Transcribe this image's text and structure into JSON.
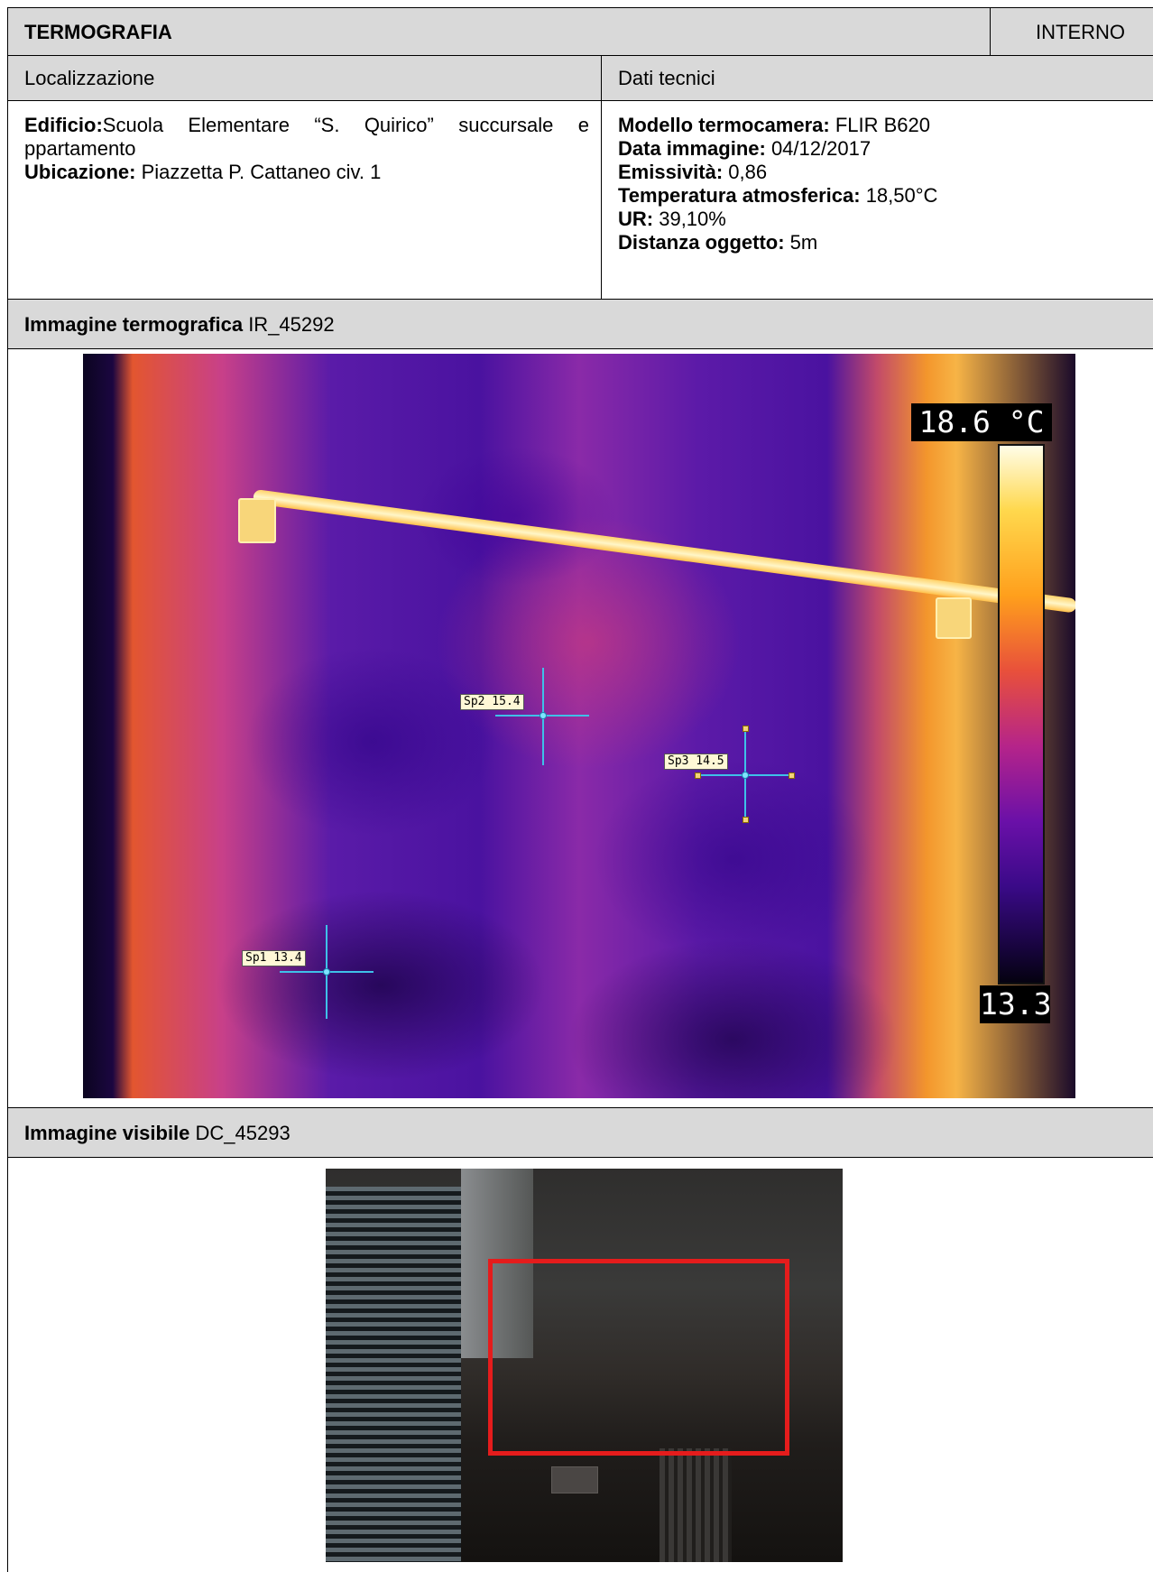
{
  "header": {
    "title": "TERMOGRAFIA",
    "side": "INTERNO"
  },
  "section_headers": {
    "location": "Localizzazione",
    "tech": "Dati tecnici"
  },
  "location": {
    "building_label": "Edificio:",
    "building_value": "Scuola Elementare “S. Quirico” succursale e ppartamento",
    "address_label": "Ubicazione:",
    "address_value": " Piazzetta P. Cattaneo civ. 1"
  },
  "tech": {
    "camera_label": "Modello termocamera:",
    "camera_value": " FLIR B620",
    "date_label": "Data immagine:",
    "date_value": " 04/12/2017",
    "emissivity_label": "Emissività:",
    "emissivity_value": " 0,86",
    "temp_label": "Temperatura atmosferica:",
    "temp_value": " 18,50°C",
    "ur_label": "UR:",
    "ur_value": " 39,10%",
    "distance_label": "Distanza oggetto:",
    "distance_value": " 5m"
  },
  "thermal_section": {
    "label": "Immagine termografica",
    "id": " IR_45292"
  },
  "thermal_image": {
    "scale_max": "18.6 °C",
    "scale_min": "13.3",
    "palette": "iron",
    "spots": [
      {
        "label": "Sp1 13.4"
      },
      {
        "label": "Sp2 15.4"
      },
      {
        "label": "Sp3 14.5"
      }
    ]
  },
  "visible_section": {
    "label": "Immagine visibile",
    "id": " DC_45293"
  },
  "colors": {
    "header_bg": "#d9d9d9",
    "marker_rect": "#e51c1c",
    "spot_cross": "#3fc0e8"
  }
}
